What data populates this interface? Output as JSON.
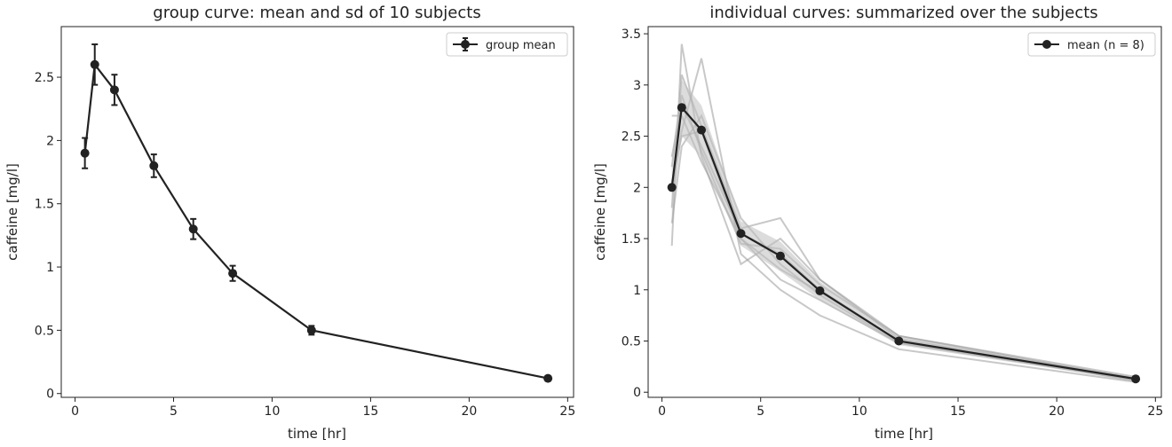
{
  "chart_data": [
    {
      "type": "line",
      "title": "group curve: mean and sd of 10 subjects",
      "xlabel": "time [hr]",
      "ylabel": "caffeine [mg/l]",
      "xlim": [
        -0.7,
        25.3
      ],
      "ylim": [
        -0.03,
        2.9
      ],
      "xticks": [
        0,
        5,
        10,
        15,
        20,
        25
      ],
      "yticks": [
        0.0,
        0.5,
        1.0,
        1.5,
        2.0,
        2.5
      ],
      "grid": false,
      "legend": {
        "position": "top-right"
      },
      "series": [
        {
          "name": "group mean",
          "x": [
            0.5,
            1,
            2,
            4,
            6,
            8,
            12,
            24
          ],
          "y": [
            1.9,
            2.6,
            2.4,
            1.8,
            1.3,
            0.95,
            0.5,
            0.12
          ],
          "sd": [
            0.12,
            0.16,
            0.12,
            0.09,
            0.08,
            0.06,
            0.035,
            0.01
          ],
          "color": "#222222"
        }
      ]
    },
    {
      "type": "line",
      "title": "individual curves: summarized over the subjects",
      "xlabel": "time [hr]",
      "ylabel": "caffeine [mg/l]",
      "xlim": [
        -0.7,
        25.3
      ],
      "ylim": [
        -0.05,
        3.57
      ],
      "xticks": [
        0,
        5,
        10,
        15,
        20,
        25
      ],
      "yticks": [
        0.0,
        0.5,
        1.0,
        1.5,
        2.0,
        2.5,
        3.0,
        3.5
      ],
      "grid": false,
      "legend": {
        "position": "top-right"
      },
      "individuals": {
        "x": [
          0.5,
          1,
          2,
          4,
          6,
          8,
          12,
          24
        ],
        "color": "#9a9a9a",
        "curves": [
          [
            1.43,
            3.4,
            2.3,
            1.25,
            1.5,
            1.1,
            0.55,
            0.15
          ],
          [
            2.7,
            2.7,
            2.25,
            1.5,
            1.1,
            0.9,
            0.48,
            0.13
          ],
          [
            2.0,
            2.55,
            3.26,
            1.35,
            1.0,
            0.75,
            0.42,
            0.1
          ],
          [
            1.8,
            3.1,
            2.6,
            1.6,
            1.7,
            1.1,
            0.52,
            0.14
          ],
          [
            2.3,
            2.8,
            2.4,
            1.55,
            1.35,
            1.0,
            0.5,
            0.12
          ],
          [
            1.65,
            2.4,
            2.7,
            1.7,
            1.25,
            0.95,
            0.48,
            0.12
          ],
          [
            2.2,
            2.9,
            2.35,
            1.45,
            1.4,
            1.05,
            0.55,
            0.13
          ],
          [
            2.05,
            2.5,
            2.55,
            1.5,
            1.2,
            0.98,
            0.5,
            0.11
          ]
        ]
      },
      "band": {
        "x": [
          0.5,
          1,
          2,
          4,
          6,
          8,
          12,
          24
        ],
        "lower": [
          1.7,
          2.5,
          2.3,
          1.43,
          1.18,
          0.9,
          0.46,
          0.11
        ],
        "upper": [
          2.3,
          3.05,
          2.8,
          1.67,
          1.47,
          1.08,
          0.54,
          0.15
        ],
        "color": "#bfbfbf"
      },
      "series": [
        {
          "name": "mean (n = 8)",
          "x": [
            0.5,
            1,
            2,
            4,
            6,
            8,
            12,
            24
          ],
          "y": [
            2.0,
            2.78,
            2.56,
            1.55,
            1.33,
            0.99,
            0.5,
            0.13
          ],
          "color": "#222222"
        }
      ]
    }
  ]
}
